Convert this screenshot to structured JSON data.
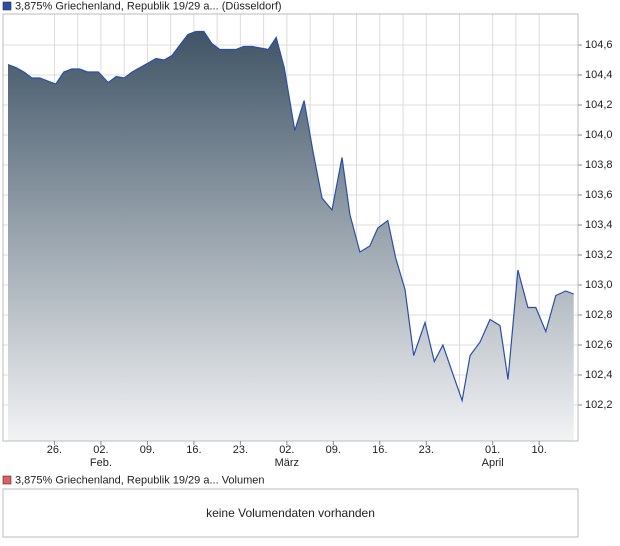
{
  "chart_data": {
    "type": "area",
    "series": [
      {
        "name": "3,875% Griechenland, Republik 19/29 a... (Düsseldorf)",
        "color": "#2b4fa8",
        "x": [
          0,
          1.2,
          2.4,
          3.6,
          4.8,
          6.0,
          7.2,
          8.4,
          9.6,
          10.8,
          12.0,
          13.6,
          15.1,
          16.3,
          17.5,
          18.7,
          19.9,
          21.1,
          22.3,
          23.5,
          24.7,
          25.9,
          27.1,
          28.3,
          29.5,
          30.7,
          31.9,
          33.1,
          34.3,
          35.5,
          36.8,
          38.0,
          39.2,
          40.4,
          41.6,
          43.2,
          44.6,
          45.9,
          47.3,
          48.8,
          50.3,
          51.5,
          53.0,
          54.5,
          55.7,
          57.2,
          58.4,
          59.8,
          61.1,
          62.8,
          64.2,
          65.5,
          66.9,
          68.4,
          69.6,
          71.1,
          72.6,
          74.1,
          75.3,
          76.8,
          78.3,
          79.5,
          81.0,
          82.5,
          84.0,
          85.2
        ],
        "values": [
          104.47,
          104.45,
          104.42,
          104.38,
          104.38,
          104.36,
          104.34,
          104.42,
          104.44,
          104.44,
          104.42,
          104.42,
          104.35,
          104.39,
          104.38,
          104.42,
          104.45,
          104.48,
          104.51,
          104.5,
          104.53,
          104.6,
          104.67,
          104.69,
          104.69,
          104.61,
          104.57,
          104.57,
          104.57,
          104.59,
          104.59,
          104.58,
          104.57,
          104.65,
          104.45,
          104.03,
          104.23,
          103.9,
          103.58,
          103.5,
          103.85,
          103.47,
          103.22,
          103.26,
          103.38,
          103.43,
          103.18,
          102.97,
          102.53,
          102.75,
          102.49,
          102.6,
          102.42,
          102.23,
          102.53,
          102.62,
          102.77,
          102.73,
          102.37,
          103.1,
          102.85,
          102.85,
          102.69,
          102.93,
          102.96,
          102.94
        ]
      }
    ],
    "xlim": [
      -0.75,
      85.85
    ],
    "xticks": [
      {
        "value": 7,
        "label": "26."
      },
      {
        "value": 14,
        "label": "02."
      },
      {
        "value": 21,
        "label": "09."
      },
      {
        "value": 28,
        "label": "16."
      },
      {
        "value": 35,
        "label": "23."
      },
      {
        "value": 42,
        "label": "02."
      },
      {
        "value": 49,
        "label": "09."
      },
      {
        "value": 56,
        "label": "16."
      },
      {
        "value": 63,
        "label": "23."
      },
      {
        "value": 73,
        "label": "01."
      },
      {
        "value": 80,
        "label": "10."
      }
    ],
    "month_labels": [
      {
        "value": 14,
        "label": "Feb."
      },
      {
        "value": 42,
        "label": "März"
      },
      {
        "value": 73,
        "label": "April"
      }
    ],
    "ylim": [
      101.96,
      104.807
    ],
    "yticks": [
      {
        "value": 102.2,
        "label": "102,2"
      },
      {
        "value": 102.4,
        "label": "102,4"
      },
      {
        "value": 102.6,
        "label": "102,6"
      },
      {
        "value": 102.8,
        "label": "102,8"
      },
      {
        "value": 103.0,
        "label": "103,0"
      },
      {
        "value": 103.2,
        "label": "103,2"
      },
      {
        "value": 103.4,
        "label": "103,4"
      },
      {
        "value": 103.6,
        "label": "103,6"
      },
      {
        "value": 103.8,
        "label": "103,8"
      },
      {
        "value": 104.0,
        "label": "104,0"
      },
      {
        "value": 104.2,
        "label": "104,2"
      },
      {
        "value": 104.4,
        "label": "104,4"
      },
      {
        "value": 104.6,
        "label": "104,6"
      }
    ],
    "grid": true,
    "volume_legend": "3,875% Griechenland, Republik 19/29 a... Volumen",
    "volume_legend_color": "#e06060",
    "volume_message": "keine Volumendaten vorhanden"
  }
}
